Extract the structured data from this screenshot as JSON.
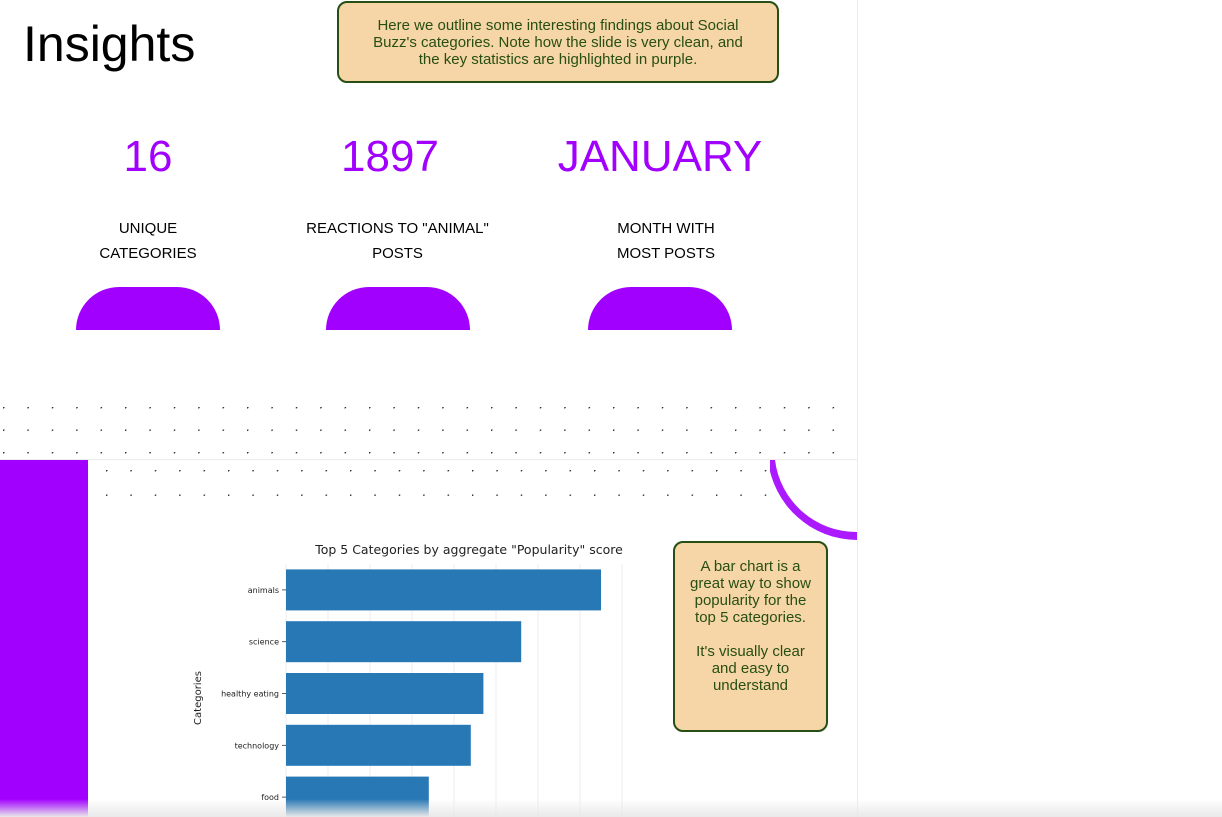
{
  "slide1": {
    "title": "Insights",
    "note": "Here we outline some interesting findings about Social Buzz's categories. Note how the slide is very clean, and the key statistics are highlighted in purple.",
    "stats": [
      {
        "value": "16",
        "label": "UNIQUE\nCATEGORIES"
      },
      {
        "value": "1897",
        "label": "REACTIONS TO \"ANIMAL\"\nPOSTS"
      },
      {
        "value": "JANUARY",
        "label": "MONTH WITH\nMOST POSTS"
      }
    ],
    "accent_color": "#a100ff"
  },
  "slide2": {
    "note": "A bar chart is a great way to show popularity for the top 5 categories.\n\nIt's visually clear and easy to understand",
    "bar_color": "#2878b5"
  },
  "chart_data": {
    "type": "bar",
    "orientation": "horizontal",
    "title": "Top 5 Categories by aggregate \"Popularity\" score",
    "ylabel": "Categories",
    "xlabel": "",
    "categories": [
      "animals",
      "science",
      "healthy eating",
      "technology",
      "food"
    ],
    "values": [
      75,
      56,
      47,
      44,
      34
    ],
    "xlim": [
      0,
      80
    ],
    "grid": true
  }
}
